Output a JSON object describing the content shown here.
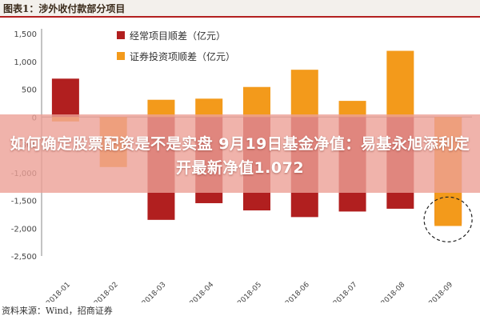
{
  "figure": {
    "title": "图表1：涉外收付款部分项目",
    "source": "资料来源：Wind，招商证券"
  },
  "overlay": {
    "headline": "如何确定股票配资是不是实盘 9月19日基金净值：易基永旭添利定开最新净值1.072"
  },
  "chart_data": {
    "type": "bar",
    "categories": [
      "2018-01",
      "2018-02",
      "2018-03",
      "2018-04",
      "2018-05",
      "2018-06",
      "2018-07",
      "2018-08",
      "2018-09"
    ],
    "series": [
      {
        "name": "经常项目顺差（亿元）",
        "color": "#b11f1f",
        "values": [
          690,
          -30,
          -1850,
          -1550,
          -1680,
          -1800,
          -1700,
          -1650,
          -1920
        ]
      },
      {
        "name": "证券投资项顺差（亿元）",
        "color": "#f39a1b",
        "values": [
          -80,
          -900,
          310,
          330,
          540,
          850,
          290,
          1190,
          -1960
        ]
      }
    ],
    "yticks": [
      1500,
      1000,
      500,
      0,
      -500,
      -1000,
      -1500,
      -2000,
      -2500
    ],
    "ytick_labels": [
      "1,500",
      "1,000",
      "500",
      "0",
      "-500",
      "-1,000",
      "-1,500",
      "-2,000",
      "-2,500"
    ],
    "ylim": [
      -2500,
      1500
    ],
    "grid": false,
    "legend": "top-left",
    "annotation": "dashed-circle-on-2018-09",
    "bar_style": "overlapped",
    "xtick_rotation": -45
  }
}
